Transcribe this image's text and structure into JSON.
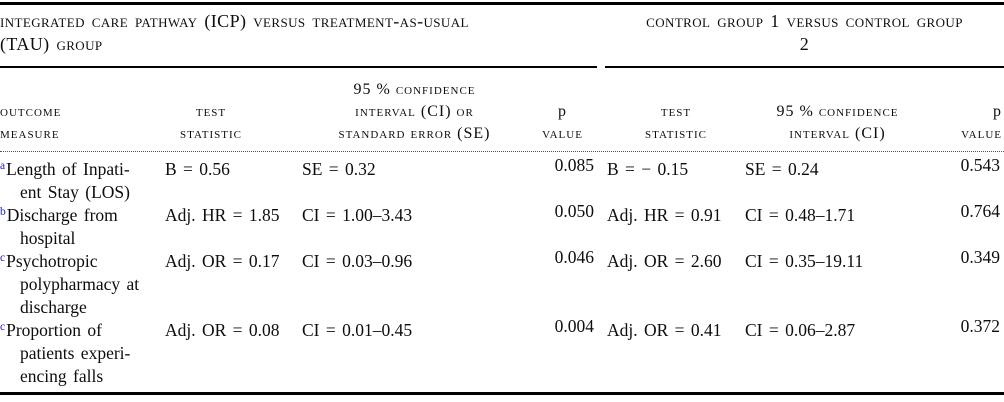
{
  "table": {
    "group1": {
      "header_lines": [
        "integrated care pathway (ICP) versus treatment-as-usual",
        "(TAU) group"
      ]
    },
    "group2": {
      "header_lines": [
        "control group 1 versus control group",
        "2"
      ]
    },
    "columns": {
      "outcome": [
        "outcome",
        "measure"
      ],
      "test1": [
        "test",
        "statistic"
      ],
      "ci1": [
        "95 % confidence",
        "interval (CI) or",
        "standard error (SE)"
      ],
      "p1": [
        "p",
        "value"
      ],
      "test2": [
        "test",
        "statistic"
      ],
      "ci2": [
        "95 % confidence",
        "interval (CI)"
      ],
      "p2": [
        "p",
        "value"
      ]
    },
    "rows": [
      {
        "footnote": "a",
        "outcome_lines": [
          "Length of Inpati-",
          "ent Stay (LOS)"
        ],
        "g1_test": "B = 0.56",
        "g1_ci_se": "SE = 0.32",
        "g1_p": "0.085",
        "g2_test": "B = − 0.15",
        "g2_ci": "SE = 0.24",
        "g2_p": "0.543"
      },
      {
        "footnote": "b",
        "outcome_lines": [
          "Discharge from",
          "hospital"
        ],
        "g1_test": "Adj. HR = 1.85",
        "g1_ci_se": "CI = 1.00–3.43",
        "g1_p": "0.050",
        "g2_test": "Adj. HR = 0.91",
        "g2_ci": "CI = 0.48–1.71",
        "g2_p": "0.764"
      },
      {
        "footnote": "c",
        "outcome_lines": [
          "Psychotropic",
          "polypharmacy at",
          "discharge"
        ],
        "g1_test": "Adj. OR = 0.17",
        "g1_ci_se": "CI = 0.03–0.96",
        "g1_p": "0.046",
        "g2_test": "Adj. OR = 2.60",
        "g2_ci": "CI = 0.35–19.11",
        "g2_p": "0.349"
      },
      {
        "footnote": "c",
        "outcome_lines": [
          "Proportion of",
          "patients experi-",
          "encing falls"
        ],
        "g1_test": "Adj. OR = 0.08",
        "g1_ci_se": "CI = 0.01–0.45",
        "g1_p": "0.004",
        "g2_test": "Adj. OR = 0.41",
        "g2_ci": "CI = 0.06–2.87",
        "g2_p": "0.372"
      }
    ]
  },
  "colors": {
    "footnote_link": "#2222c0",
    "rule": "#000000",
    "text": "#0d0d0d"
  }
}
